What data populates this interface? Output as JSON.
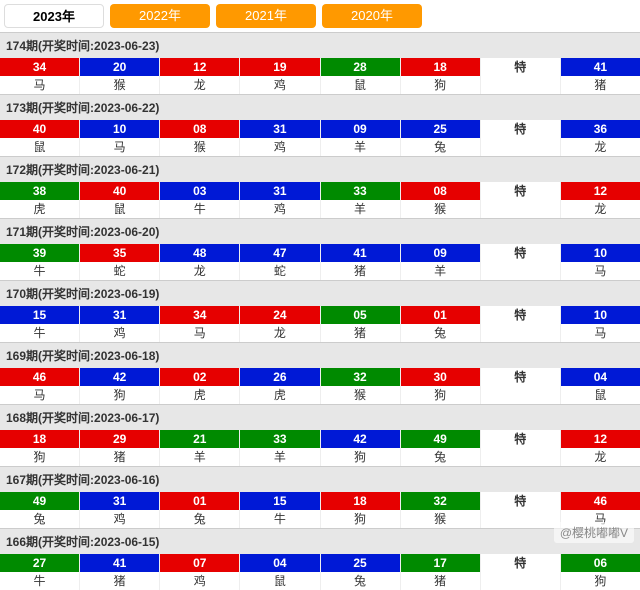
{
  "tabs": [
    {
      "label": "2023年",
      "active": true
    },
    {
      "label": "2022年",
      "active": false
    },
    {
      "label": "2021年",
      "active": false
    },
    {
      "label": "2020年",
      "active": false
    }
  ],
  "colors": {
    "red": "#e60000",
    "blue": "#0019d6",
    "green": "#008a00"
  },
  "special_label": "特",
  "periods": [
    {
      "id": "174",
      "date": "2023-06-23",
      "balls": [
        {
          "n": "34",
          "c": "red",
          "z": "马"
        },
        {
          "n": "20",
          "c": "blue",
          "z": "猴"
        },
        {
          "n": "12",
          "c": "red",
          "z": "龙"
        },
        {
          "n": "19",
          "c": "red",
          "z": "鸡"
        },
        {
          "n": "28",
          "c": "green",
          "z": "鼠"
        },
        {
          "n": "18",
          "c": "red",
          "z": "狗"
        }
      ],
      "special": {
        "n": "41",
        "c": "blue",
        "z": "猪"
      }
    },
    {
      "id": "173",
      "date": "2023-06-22",
      "balls": [
        {
          "n": "40",
          "c": "red",
          "z": "鼠"
        },
        {
          "n": "10",
          "c": "blue",
          "z": "马"
        },
        {
          "n": "08",
          "c": "red",
          "z": "猴"
        },
        {
          "n": "31",
          "c": "blue",
          "z": "鸡"
        },
        {
          "n": "09",
          "c": "blue",
          "z": "羊"
        },
        {
          "n": "25",
          "c": "blue",
          "z": "兔"
        }
      ],
      "special": {
        "n": "36",
        "c": "blue",
        "z": "龙"
      }
    },
    {
      "id": "172",
      "date": "2023-06-21",
      "balls": [
        {
          "n": "38",
          "c": "green",
          "z": "虎"
        },
        {
          "n": "40",
          "c": "red",
          "z": "鼠"
        },
        {
          "n": "03",
          "c": "blue",
          "z": "牛"
        },
        {
          "n": "31",
          "c": "blue",
          "z": "鸡"
        },
        {
          "n": "33",
          "c": "green",
          "z": "羊"
        },
        {
          "n": "08",
          "c": "red",
          "z": "猴"
        }
      ],
      "special": {
        "n": "12",
        "c": "red",
        "z": "龙"
      }
    },
    {
      "id": "171",
      "date": "2023-06-20",
      "balls": [
        {
          "n": "39",
          "c": "green",
          "z": "牛"
        },
        {
          "n": "35",
          "c": "red",
          "z": "蛇"
        },
        {
          "n": "48",
          "c": "blue",
          "z": "龙"
        },
        {
          "n": "47",
          "c": "blue",
          "z": "蛇"
        },
        {
          "n": "41",
          "c": "blue",
          "z": "猪"
        },
        {
          "n": "09",
          "c": "blue",
          "z": "羊"
        }
      ],
      "special": {
        "n": "10",
        "c": "blue",
        "z": "马"
      }
    },
    {
      "id": "170",
      "date": "2023-06-19",
      "balls": [
        {
          "n": "15",
          "c": "blue",
          "z": "牛"
        },
        {
          "n": "31",
          "c": "blue",
          "z": "鸡"
        },
        {
          "n": "34",
          "c": "red",
          "z": "马"
        },
        {
          "n": "24",
          "c": "red",
          "z": "龙"
        },
        {
          "n": "05",
          "c": "green",
          "z": "猪"
        },
        {
          "n": "01",
          "c": "red",
          "z": "兔"
        }
      ],
      "special": {
        "n": "10",
        "c": "blue",
        "z": "马"
      }
    },
    {
      "id": "169",
      "date": "2023-06-18",
      "balls": [
        {
          "n": "46",
          "c": "red",
          "z": "马"
        },
        {
          "n": "42",
          "c": "blue",
          "z": "狗"
        },
        {
          "n": "02",
          "c": "red",
          "z": "虎"
        },
        {
          "n": "26",
          "c": "blue",
          "z": "虎"
        },
        {
          "n": "32",
          "c": "green",
          "z": "猴"
        },
        {
          "n": "30",
          "c": "red",
          "z": "狗"
        }
      ],
      "special": {
        "n": "04",
        "c": "blue",
        "z": "鼠"
      }
    },
    {
      "id": "168",
      "date": "2023-06-17",
      "balls": [
        {
          "n": "18",
          "c": "red",
          "z": "狗"
        },
        {
          "n": "29",
          "c": "red",
          "z": "猪"
        },
        {
          "n": "21",
          "c": "green",
          "z": "羊"
        },
        {
          "n": "33",
          "c": "green",
          "z": "羊"
        },
        {
          "n": "42",
          "c": "blue",
          "z": "狗"
        },
        {
          "n": "49",
          "c": "green",
          "z": "兔"
        }
      ],
      "special": {
        "n": "12",
        "c": "red",
        "z": "龙"
      }
    },
    {
      "id": "167",
      "date": "2023-06-16",
      "balls": [
        {
          "n": "49",
          "c": "green",
          "z": "兔"
        },
        {
          "n": "31",
          "c": "blue",
          "z": "鸡"
        },
        {
          "n": "01",
          "c": "red",
          "z": "兔"
        },
        {
          "n": "15",
          "c": "blue",
          "z": "牛"
        },
        {
          "n": "18",
          "c": "red",
          "z": "狗"
        },
        {
          "n": "32",
          "c": "green",
          "z": "猴"
        }
      ],
      "special": {
        "n": "46",
        "c": "red",
        "z": "马"
      }
    },
    {
      "id": "166",
      "date": "2023-06-15",
      "balls": [
        {
          "n": "27",
          "c": "green",
          "z": "牛"
        },
        {
          "n": "41",
          "c": "blue",
          "z": "猪"
        },
        {
          "n": "07",
          "c": "red",
          "z": "鸡"
        },
        {
          "n": "04",
          "c": "blue",
          "z": "鼠"
        },
        {
          "n": "25",
          "c": "blue",
          "z": "兔"
        },
        {
          "n": "17",
          "c": "green",
          "z": "猪"
        }
      ],
      "special": {
        "n": "06",
        "c": "green",
        "z": "狗"
      }
    }
  ],
  "watermark": "@樱桃嘟嘟V"
}
